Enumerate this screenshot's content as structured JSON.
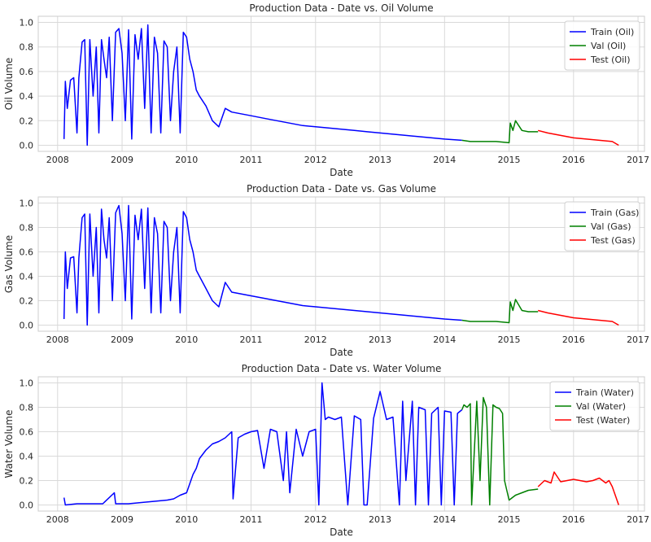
{
  "chart_data": [
    {
      "type": "line",
      "title": "Production Data - Date vs. Oil Volume",
      "xlabel": "Date",
      "ylabel": "Oil Volume",
      "xlim": [
        2007.7,
        2017.1
      ],
      "ylim": [
        -0.05,
        1.05
      ],
      "xticks": [
        "2008",
        "2009",
        "2010",
        "2011",
        "2012",
        "2013",
        "2014",
        "2015",
        "2016",
        "2017"
      ],
      "yticks": [
        "0.0",
        "0.2",
        "0.4",
        "0.6",
        "0.8",
        "1.0"
      ],
      "grid": true,
      "legend_position": "top-right",
      "series": [
        {
          "name": "Train (Oil)",
          "color": "#0000ff",
          "x": [
            2008.1,
            2008.12,
            2008.15,
            2008.2,
            2008.25,
            2008.3,
            2008.33,
            2008.38,
            2008.42,
            2008.46,
            2008.5,
            2008.55,
            2008.6,
            2008.64,
            2008.68,
            2008.72,
            2008.76,
            2008.8,
            2008.85,
            2008.9,
            2008.95,
            2009.0,
            2009.05,
            2009.1,
            2009.15,
            2009.2,
            2009.25,
            2009.3,
            2009.35,
            2009.4,
            2009.45,
            2009.5,
            2009.55,
            2009.6,
            2009.65,
            2009.7,
            2009.75,
            2009.8,
            2009.85,
            2009.9,
            2009.95,
            2010.0,
            2010.05,
            2010.1,
            2010.15,
            2010.2,
            2010.3,
            2010.4,
            2010.5,
            2010.6,
            2010.7,
            2010.8,
            2010.9,
            2011.0,
            2011.2,
            2011.4,
            2011.6,
            2011.8,
            2012.0,
            2012.2,
            2012.4,
            2012.6,
            2012.8,
            2013.0,
            2013.2,
            2013.4,
            2013.6,
            2013.8,
            2014.0,
            2014.27
          ],
          "values": [
            0.05,
            0.52,
            0.3,
            0.53,
            0.55,
            0.1,
            0.55,
            0.84,
            0.86,
            0.0,
            0.86,
            0.4,
            0.8,
            0.1,
            0.86,
            0.7,
            0.55,
            0.88,
            0.2,
            0.92,
            0.95,
            0.75,
            0.2,
            0.94,
            0.05,
            0.9,
            0.7,
            0.95,
            0.3,
            0.98,
            0.1,
            0.88,
            0.75,
            0.1,
            0.85,
            0.8,
            0.2,
            0.6,
            0.8,
            0.1,
            0.92,
            0.88,
            0.7,
            0.6,
            0.45,
            0.4,
            0.32,
            0.2,
            0.15,
            0.3,
            0.27,
            0.26,
            0.25,
            0.24,
            0.22,
            0.2,
            0.18,
            0.16,
            0.15,
            0.14,
            0.13,
            0.12,
            0.11,
            0.1,
            0.09,
            0.08,
            0.07,
            0.06,
            0.05,
            0.04
          ]
        },
        {
          "name": "Val (Oil)",
          "color": "#008000",
          "x": [
            2014.27,
            2014.4,
            2014.6,
            2014.8,
            2015.0,
            2015.02,
            2015.06,
            2015.1,
            2015.2,
            2015.3,
            2015.45
          ],
          "values": [
            0.04,
            0.03,
            0.03,
            0.03,
            0.02,
            0.18,
            0.12,
            0.2,
            0.12,
            0.11,
            0.11
          ]
        },
        {
          "name": "Test (Oil)",
          "color": "#ff0000",
          "x": [
            2015.45,
            2015.6,
            2015.8,
            2016.0,
            2016.2,
            2016.4,
            2016.6,
            2016.7
          ],
          "values": [
            0.12,
            0.1,
            0.08,
            0.06,
            0.05,
            0.04,
            0.03,
            0.0
          ]
        }
      ]
    },
    {
      "type": "line",
      "title": "Production Data - Date vs. Gas Volume",
      "xlabel": "Date",
      "ylabel": "Gas Volume",
      "xlim": [
        2007.7,
        2017.1
      ],
      "ylim": [
        -0.05,
        1.05
      ],
      "xticks": [
        "2008",
        "2009",
        "2010",
        "2011",
        "2012",
        "2013",
        "2014",
        "2015",
        "2016",
        "2017"
      ],
      "yticks": [
        "0.0",
        "0.2",
        "0.4",
        "0.6",
        "0.8",
        "1.0"
      ],
      "grid": true,
      "legend_position": "top-right",
      "series": [
        {
          "name": "Train (Gas)",
          "color": "#0000ff",
          "x": [
            2008.1,
            2008.12,
            2008.15,
            2008.2,
            2008.25,
            2008.3,
            2008.33,
            2008.38,
            2008.42,
            2008.46,
            2008.5,
            2008.55,
            2008.6,
            2008.64,
            2008.68,
            2008.72,
            2008.76,
            2008.8,
            2008.85,
            2008.9,
            2008.95,
            2009.0,
            2009.05,
            2009.1,
            2009.15,
            2009.2,
            2009.25,
            2009.3,
            2009.35,
            2009.4,
            2009.45,
            2009.5,
            2009.55,
            2009.6,
            2009.65,
            2009.7,
            2009.75,
            2009.8,
            2009.85,
            2009.9,
            2009.95,
            2010.0,
            2010.05,
            2010.1,
            2010.15,
            2010.2,
            2010.3,
            2010.4,
            2010.5,
            2010.6,
            2010.7,
            2010.8,
            2010.9,
            2011.0,
            2011.2,
            2011.4,
            2011.6,
            2011.8,
            2012.0,
            2012.2,
            2012.4,
            2012.6,
            2012.8,
            2013.0,
            2013.2,
            2013.4,
            2013.6,
            2013.8,
            2014.0,
            2014.27
          ],
          "values": [
            0.05,
            0.6,
            0.3,
            0.55,
            0.56,
            0.1,
            0.55,
            0.88,
            0.91,
            0.0,
            0.91,
            0.4,
            0.8,
            0.1,
            0.95,
            0.7,
            0.55,
            0.88,
            0.2,
            0.92,
            0.98,
            0.75,
            0.2,
            0.98,
            0.05,
            0.9,
            0.7,
            0.95,
            0.3,
            0.96,
            0.1,
            0.88,
            0.75,
            0.1,
            0.85,
            0.8,
            0.2,
            0.6,
            0.8,
            0.1,
            0.93,
            0.88,
            0.7,
            0.6,
            0.45,
            0.4,
            0.3,
            0.2,
            0.15,
            0.35,
            0.27,
            0.26,
            0.25,
            0.24,
            0.22,
            0.2,
            0.18,
            0.16,
            0.15,
            0.14,
            0.13,
            0.12,
            0.11,
            0.1,
            0.09,
            0.08,
            0.07,
            0.06,
            0.05,
            0.04
          ]
        },
        {
          "name": "Val (Gas)",
          "color": "#008000",
          "x": [
            2014.27,
            2014.4,
            2014.6,
            2014.8,
            2015.0,
            2015.02,
            2015.06,
            2015.1,
            2015.2,
            2015.3,
            2015.45
          ],
          "values": [
            0.04,
            0.03,
            0.03,
            0.03,
            0.02,
            0.19,
            0.12,
            0.21,
            0.12,
            0.11,
            0.11
          ]
        },
        {
          "name": "Test (Gas)",
          "color": "#ff0000",
          "x": [
            2015.45,
            2015.6,
            2015.8,
            2016.0,
            2016.2,
            2016.4,
            2016.6,
            2016.7
          ],
          "values": [
            0.12,
            0.1,
            0.08,
            0.06,
            0.05,
            0.04,
            0.03,
            0.0
          ]
        }
      ]
    },
    {
      "type": "line",
      "title": "Production Data - Date vs. Water Volume",
      "xlabel": "Date",
      "ylabel": "Water Volume",
      "xlim": [
        2007.7,
        2017.1
      ],
      "ylim": [
        -0.05,
        1.05
      ],
      "xticks": [
        "2008",
        "2009",
        "2010",
        "2011",
        "2012",
        "2013",
        "2014",
        "2015",
        "2016",
        "2017"
      ],
      "yticks": [
        "0.0",
        "0.2",
        "0.4",
        "0.6",
        "0.8",
        "1.0"
      ],
      "grid": true,
      "legend_position": "top-right",
      "series": [
        {
          "name": "Train (Water)",
          "color": "#0000ff",
          "x": [
            2008.1,
            2008.12,
            2008.3,
            2008.5,
            2008.7,
            2008.88,
            2008.9,
            2008.92,
            2009.1,
            2009.3,
            2009.5,
            2009.7,
            2009.8,
            2009.9,
            2010.0,
            2010.1,
            2010.15,
            2010.2,
            2010.3,
            2010.4,
            2010.5,
            2010.6,
            2010.7,
            2010.72,
            2010.8,
            2010.9,
            2011.0,
            2011.1,
            2011.2,
            2011.3,
            2011.4,
            2011.5,
            2011.55,
            2011.6,
            2011.7,
            2011.8,
            2011.9,
            2012.0,
            2012.05,
            2012.1,
            2012.15,
            2012.2,
            2012.3,
            2012.4,
            2012.5,
            2012.6,
            2012.7,
            2012.75,
            2012.8,
            2012.9,
            2013.0,
            2013.1,
            2013.2,
            2013.3,
            2013.35,
            2013.4,
            2013.5,
            2013.55,
            2013.6,
            2013.7,
            2013.75,
            2013.8,
            2013.9,
            2013.95,
            2014.0,
            2014.1,
            2014.15,
            2014.2,
            2014.27
          ],
          "values": [
            0.06,
            0.0,
            0.01,
            0.01,
            0.01,
            0.1,
            0.01,
            0.01,
            0.01,
            0.02,
            0.03,
            0.04,
            0.05,
            0.08,
            0.1,
            0.25,
            0.3,
            0.38,
            0.45,
            0.5,
            0.52,
            0.55,
            0.6,
            0.05,
            0.55,
            0.58,
            0.6,
            0.61,
            0.3,
            0.62,
            0.6,
            0.2,
            0.6,
            0.1,
            0.62,
            0.4,
            0.6,
            0.62,
            0.0,
            1.0,
            0.7,
            0.72,
            0.7,
            0.72,
            0.0,
            0.73,
            0.7,
            0.0,
            0.0,
            0.71,
            0.93,
            0.7,
            0.72,
            0.0,
            0.85,
            0.2,
            0.85,
            0.0,
            0.8,
            0.78,
            0.0,
            0.75,
            0.8,
            0.0,
            0.77,
            0.76,
            0.0,
            0.75,
            0.78
          ]
        },
        {
          "name": "Val (Water)",
          "color": "#008000",
          "x": [
            2014.27,
            2014.3,
            2014.35,
            2014.4,
            2014.42,
            2014.5,
            2014.55,
            2014.6,
            2014.65,
            2014.7,
            2014.75,
            2014.8,
            2014.85,
            2014.9,
            2014.93,
            2015.0,
            2015.1,
            2015.2,
            2015.3,
            2015.45
          ],
          "values": [
            0.78,
            0.82,
            0.8,
            0.83,
            0.0,
            0.85,
            0.2,
            0.88,
            0.8,
            0.0,
            0.82,
            0.8,
            0.79,
            0.75,
            0.2,
            0.04,
            0.08,
            0.1,
            0.12,
            0.13
          ]
        },
        {
          "name": "Test (Water)",
          "color": "#ff0000",
          "x": [
            2015.45,
            2015.55,
            2015.65,
            2015.7,
            2015.8,
            2015.9,
            2016.0,
            2016.1,
            2016.2,
            2016.3,
            2016.4,
            2016.5,
            2016.55,
            2016.6,
            2016.7
          ],
          "values": [
            0.15,
            0.2,
            0.18,
            0.27,
            0.19,
            0.2,
            0.21,
            0.2,
            0.19,
            0.2,
            0.22,
            0.18,
            0.2,
            0.15,
            0.0
          ]
        }
      ]
    }
  ]
}
